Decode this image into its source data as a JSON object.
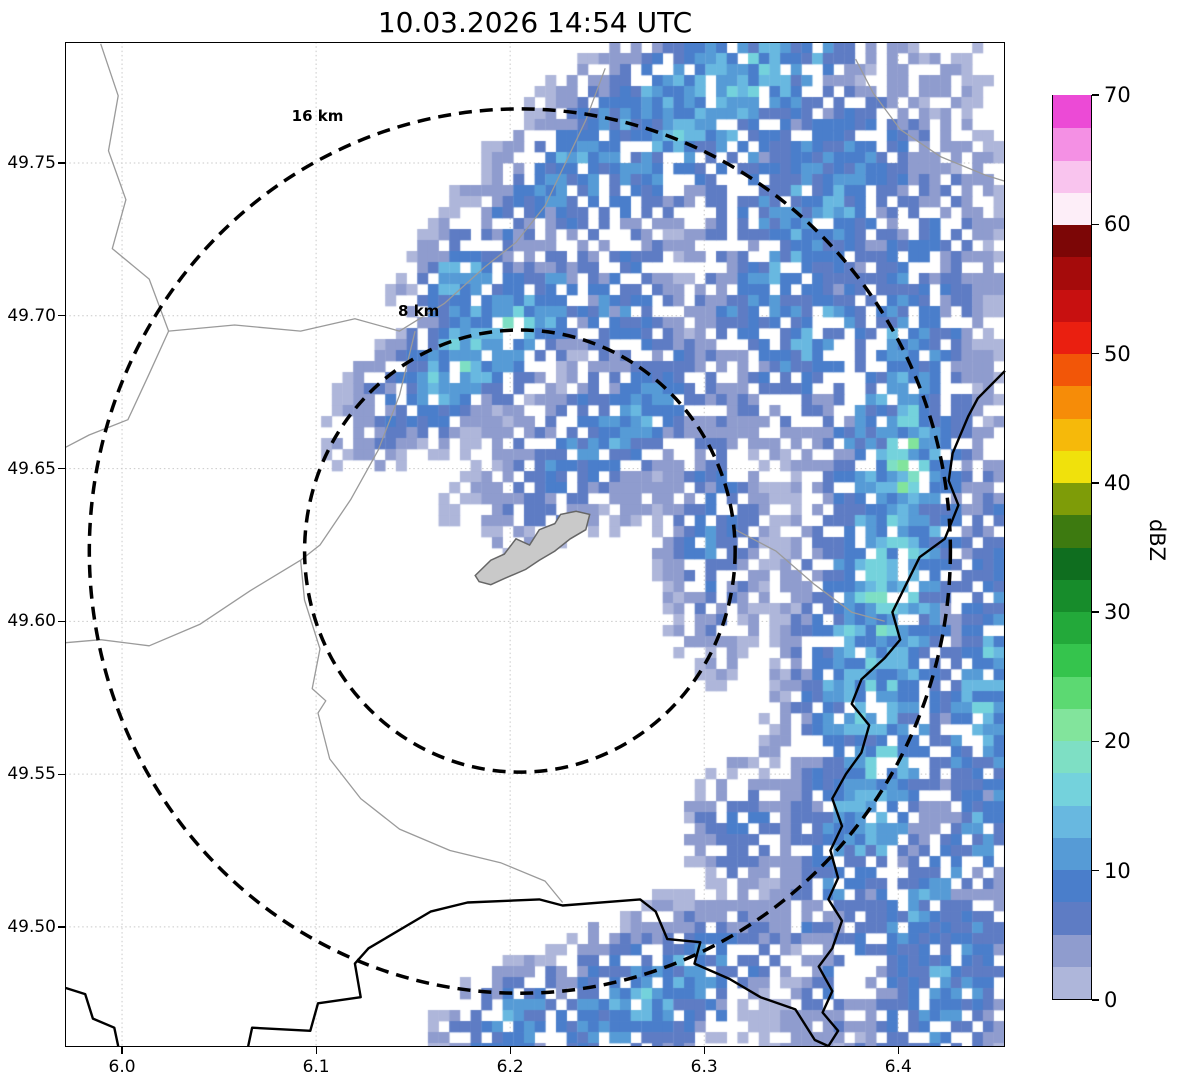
{
  "chart_data": {
    "type": "heatmap",
    "title": "10.03.2026 14:54 UTC",
    "xlabel": "",
    "ylabel": "",
    "xlim": [
      5.9706,
      6.455
    ],
    "ylim": [
      49.4607,
      49.7896
    ],
    "x_ticks": [
      6.0,
      6.1,
      6.2,
      6.3,
      6.4
    ],
    "x_tick_labels": [
      "6.0",
      "6.1",
      "6.2",
      "6.3",
      "6.4"
    ],
    "y_ticks": [
      49.5,
      49.55,
      49.6,
      49.65,
      49.7,
      49.75
    ],
    "y_tick_labels": [
      "49.50",
      "49.55",
      "49.60",
      "49.65",
      "49.70",
      "49.75"
    ],
    "grid": true,
    "colorbar": {
      "label": "dBZ",
      "min": 0,
      "max": 70,
      "band_size": 2.5,
      "ticks": [
        0,
        10,
        20,
        30,
        40,
        50,
        60,
        70
      ],
      "tick_labels": [
        "0",
        "10",
        "20",
        "30",
        "40",
        "50",
        "60",
        "70"
      ],
      "colors": [
        "#aeb6da",
        "#8f9cce",
        "#5e7cc4",
        "#4a7ecb",
        "#569bd6",
        "#68b8e0",
        "#74d2dc",
        "#7edfc4",
        "#82e49c",
        "#5cd972",
        "#35c44d",
        "#23a93a",
        "#178c2b",
        "#0f6e1f",
        "#3d7a10",
        "#7e9c08",
        "#f0e10c",
        "#f6b90a",
        "#f68c08",
        "#f25608",
        "#ea1f10",
        "#c81010",
        "#a50b0b",
        "#7c0606",
        "#fdeef8",
        "#f9c4ee",
        "#f490e4",
        "#ec4ad6"
      ]
    },
    "range_rings": [
      {
        "label": "16 km",
        "radius_km": 16
      },
      {
        "label": "8 km",
        "radius_km": 8
      }
    ],
    "radar": {
      "center": {
        "lon": 6.205,
        "lat": 49.623
      },
      "cell_deg": {
        "lon": 0.0055,
        "lat": 0.0036
      },
      "min_dbz": 1.6,
      "blobs": [
        {
          "lon": 6.3,
          "lat": 49.772,
          "sx": 0.075,
          "sy": 0.02,
          "rot": 22,
          "peak": 13
        },
        {
          "lon": 6.235,
          "lat": 49.752,
          "sx": 0.045,
          "sy": 0.014,
          "rot": 25,
          "peak": 11
        },
        {
          "lon": 6.36,
          "lat": 49.738,
          "sx": 0.045,
          "sy": 0.028,
          "rot": 10,
          "peak": 12
        },
        {
          "lon": 6.185,
          "lat": 49.69,
          "sx": 0.042,
          "sy": 0.013,
          "rot": 22,
          "peak": 15
        },
        {
          "lon": 6.175,
          "lat": 49.712,
          "sx": 0.02,
          "sy": 0.012,
          "rot": 20,
          "peak": 12
        },
        {
          "lon": 6.255,
          "lat": 49.663,
          "sx": 0.048,
          "sy": 0.016,
          "rot": 20,
          "peak": 12
        },
        {
          "lon": 6.392,
          "lat": 49.605,
          "sx": 0.028,
          "sy": 0.105,
          "rot": -8,
          "peak": 13
        },
        {
          "lon": 6.405,
          "lat": 49.652,
          "sx": 0.013,
          "sy": 0.02,
          "rot": 0,
          "peak": 19
        },
        {
          "lon": 6.345,
          "lat": 49.705,
          "sx": 0.035,
          "sy": 0.026,
          "rot": 15,
          "peak": 12
        },
        {
          "lon": 6.262,
          "lat": 49.7,
          "sx": 0.02,
          "sy": 0.02,
          "rot": 0,
          "peak": 10
        },
        {
          "lon": 6.306,
          "lat": 49.628,
          "sx": 0.018,
          "sy": 0.028,
          "rot": 0,
          "peak": 8
        },
        {
          "lon": 6.27,
          "lat": 49.477,
          "sx": 0.05,
          "sy": 0.016,
          "rot": 15,
          "peak": 11
        },
        {
          "lon": 6.205,
          "lat": 49.468,
          "sx": 0.026,
          "sy": 0.012,
          "rot": 10,
          "peak": 10
        },
        {
          "lon": 6.42,
          "lat": 49.492,
          "sx": 0.03,
          "sy": 0.036,
          "rot": -10,
          "peak": 11
        },
        {
          "lon": 6.32,
          "lat": 49.532,
          "sx": 0.018,
          "sy": 0.013,
          "rot": 0,
          "peak": 8
        },
        {
          "lon": 6.448,
          "lat": 49.568,
          "sx": 0.02,
          "sy": 0.055,
          "rot": -8,
          "peak": 12
        }
      ]
    },
    "map_layers": {
      "colors": {
        "country": "#000000",
        "admin": "#9a9a9a",
        "city_fill": "#c9c9c9",
        "city_stroke": "#666666"
      },
      "country_borders": [
        [
          [
            6.455,
            49.682
          ],
          [
            6.441,
            49.673
          ],
          [
            6.436,
            49.667
          ],
          [
            6.428,
            49.655
          ],
          [
            6.426,
            49.646
          ],
          [
            6.431,
            49.638
          ],
          [
            6.424,
            49.627
          ],
          [
            6.411,
            49.621
          ],
          [
            6.404,
            49.612
          ],
          [
            6.397,
            49.603
          ],
          [
            6.401,
            49.594
          ],
          [
            6.393,
            49.588
          ],
          [
            6.381,
            49.581
          ],
          [
            6.376,
            49.573
          ],
          [
            6.385,
            49.566
          ],
          [
            6.381,
            49.557
          ],
          [
            6.373,
            49.55
          ],
          [
            6.366,
            49.542
          ],
          [
            6.371,
            49.533
          ],
          [
            6.365,
            49.525
          ],
          [
            6.369,
            49.516
          ],
          [
            6.364,
            49.509
          ],
          [
            6.371,
            49.502
          ],
          [
            6.366,
            49.493
          ],
          [
            6.359,
            49.487
          ],
          [
            6.366,
            49.479
          ],
          [
            6.361,
            49.472
          ],
          [
            6.369,
            49.466
          ],
          [
            6.364,
            49.461
          ]
        ],
        [
          [
            6.065,
            49.461
          ],
          [
            6.067,
            49.467
          ],
          [
            6.097,
            49.466
          ],
          [
            6.101,
            49.475
          ],
          [
            6.123,
            49.477
          ],
          [
            6.12,
            49.488
          ],
          [
            6.127,
            49.493
          ],
          [
            6.159,
            49.505
          ],
          [
            6.178,
            49.508
          ],
          [
            6.215,
            49.509
          ],
          [
            6.227,
            49.507
          ],
          [
            6.267,
            49.509
          ],
          [
            6.275,
            49.505
          ],
          [
            6.281,
            49.496
          ],
          [
            6.298,
            49.495
          ],
          [
            6.295,
            49.488
          ],
          [
            6.313,
            49.483
          ],
          [
            6.329,
            49.477
          ],
          [
            6.347,
            49.473
          ],
          [
            6.357,
            49.463
          ],
          [
            6.364,
            49.461
          ]
        ],
        [
          [
            5.971,
            49.48
          ],
          [
            5.981,
            49.478
          ],
          [
            5.985,
            49.47
          ],
          [
            5.996,
            49.467
          ],
          [
            5.998,
            49.461
          ]
        ]
      ],
      "admin_boundaries": [
        [
          [
            5.989,
            49.789
          ],
          [
            5.998,
            49.772
          ],
          [
            5.993,
            49.754
          ],
          [
            6.002,
            49.738
          ],
          [
            5.995,
            49.722
          ],
          [
            6.014,
            49.712
          ],
          [
            6.024,
            49.695
          ],
          [
            6.014,
            49.681
          ],
          [
            6.003,
            49.666
          ],
          [
            5.983,
            49.661
          ],
          [
            5.971,
            49.657
          ]
        ],
        [
          [
            6.024,
            49.695
          ],
          [
            6.058,
            49.697
          ],
          [
            6.092,
            49.695
          ],
          [
            6.12,
            49.699
          ],
          [
            6.143,
            49.695
          ],
          [
            6.166,
            49.704
          ],
          [
            6.187,
            49.716
          ],
          [
            6.203,
            49.724
          ],
          [
            6.218,
            49.736
          ],
          [
            6.239,
            49.764
          ],
          [
            6.249,
            49.781
          ]
        ],
        [
          [
            6.378,
            49.784
          ],
          [
            6.387,
            49.773
          ],
          [
            6.401,
            49.761
          ],
          [
            6.422,
            49.752
          ],
          [
            6.445,
            49.746
          ],
          [
            6.455,
            49.744
          ]
        ],
        [
          [
            6.151,
            49.695
          ],
          [
            6.143,
            49.674
          ],
          [
            6.132,
            49.656
          ],
          [
            6.118,
            49.64
          ],
          [
            6.102,
            49.625
          ],
          [
            6.092,
            49.62
          ],
          [
            6.066,
            49.61
          ],
          [
            6.04,
            49.599
          ],
          [
            6.014,
            49.592
          ],
          [
            5.989,
            49.594
          ],
          [
            5.971,
            49.593
          ]
        ],
        [
          [
            6.092,
            49.62
          ],
          [
            6.094,
            49.607
          ],
          [
            6.102,
            49.591
          ],
          [
            6.098,
            49.578
          ],
          [
            6.105,
            49.574
          ],
          [
            6.101,
            49.57
          ],
          [
            6.107,
            49.555
          ],
          [
            6.123,
            49.542
          ],
          [
            6.143,
            49.532
          ],
          [
            6.169,
            49.525
          ],
          [
            6.195,
            49.521
          ],
          [
            6.218,
            49.515
          ],
          [
            6.227,
            49.508
          ]
        ],
        [
          [
            6.316,
            49.63
          ],
          [
            6.337,
            49.623
          ],
          [
            6.357,
            49.612
          ],
          [
            6.376,
            49.603
          ],
          [
            6.393,
            49.6
          ]
        ]
      ],
      "city_outline": [
        [
          6.182,
          49.615
        ],
        [
          6.19,
          49.62
        ],
        [
          6.197,
          49.622
        ],
        [
          6.203,
          49.627
        ],
        [
          6.21,
          49.625
        ],
        [
          6.215,
          49.63
        ],
        [
          6.223,
          49.632
        ],
        [
          6.226,
          49.635
        ],
        [
          6.234,
          49.636
        ],
        [
          6.241,
          49.635
        ],
        [
          6.239,
          49.63
        ],
        [
          6.231,
          49.627
        ],
        [
          6.223,
          49.623
        ],
        [
          6.215,
          49.62
        ],
        [
          6.208,
          49.617
        ],
        [
          6.197,
          49.614
        ],
        [
          6.19,
          49.612
        ],
        [
          6.184,
          49.613
        ]
      ]
    }
  }
}
